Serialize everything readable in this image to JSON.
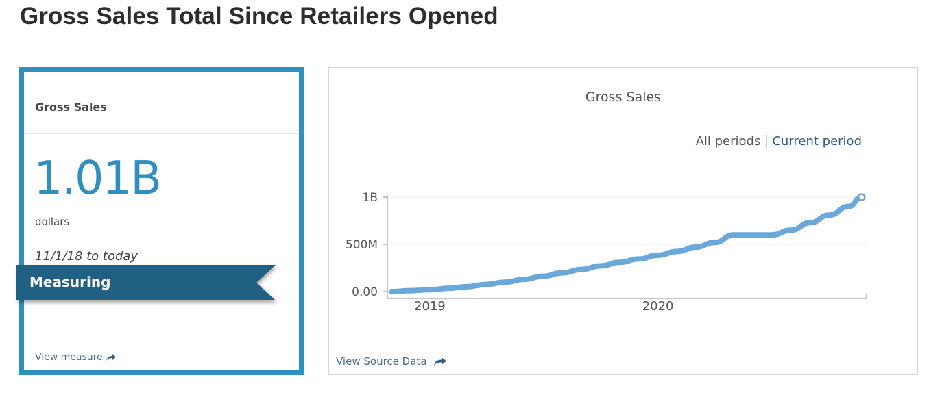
{
  "page": {
    "title": "Gross Sales Total Since Retailers Opened"
  },
  "measure_card": {
    "title": "Gross Sales",
    "value": "1.01B",
    "unit": "dollars",
    "date_range": "11/1/18 to today",
    "ribbon_label": "Measuring",
    "link_label": "View measure",
    "accent_color": "#2f8fc1",
    "ribbon_color": "#1f6083",
    "link_icon": "share-arrow-icon"
  },
  "chart_card": {
    "title": "Gross Sales",
    "period_all": "All periods",
    "period_current": "Current period",
    "source_link": "View Source Data",
    "source_icon": "share-arrow-icon"
  },
  "chart_data": {
    "type": "line",
    "title": "Gross Sales",
    "xlabel": "",
    "ylabel": "",
    "series_color": "#6aa8da",
    "x_ticks": [
      {
        "value": "2019-01-01",
        "label": "2019"
      },
      {
        "value": "2020-01-01",
        "label": "2020"
      }
    ],
    "y_ticks": [
      {
        "value": 0,
        "label": "0.00"
      },
      {
        "value": 500000000,
        "label": "500M"
      },
      {
        "value": 1000000000,
        "label": "1B"
      }
    ],
    "xlim": [
      "2018-10-25",
      "2020-11-30"
    ],
    "ylim": [
      0,
      1000000000
    ],
    "grid": "horizontal",
    "series": [
      {
        "x": [
          "2018-11-01",
          "2018-12-01",
          "2019-01-01",
          "2019-02-01",
          "2019-03-01",
          "2019-04-01",
          "2019-05-01",
          "2019-06-01",
          "2019-07-01",
          "2019-08-01",
          "2019-09-01",
          "2019-10-01",
          "2019-11-01",
          "2019-12-01",
          "2020-01-01",
          "2020-02-01",
          "2020-03-01",
          "2020-04-01",
          "2020-05-01",
          "2020-06-01",
          "2020-07-01",
          "2020-08-01",
          "2020-09-01",
          "2020-10-01",
          "2020-11-01",
          "2020-11-22"
        ],
        "y": [
          0,
          10000000,
          20000000,
          35000000,
          52000000,
          75000000,
          100000000,
          130000000,
          162000000,
          198000000,
          235000000,
          272000000,
          310000000,
          345000000,
          385000000,
          425000000,
          470000000,
          520000000,
          600000000,
          600000000,
          600000000,
          650000000,
          730000000,
          810000000,
          900000000,
          1000000000
        ]
      }
    ]
  }
}
